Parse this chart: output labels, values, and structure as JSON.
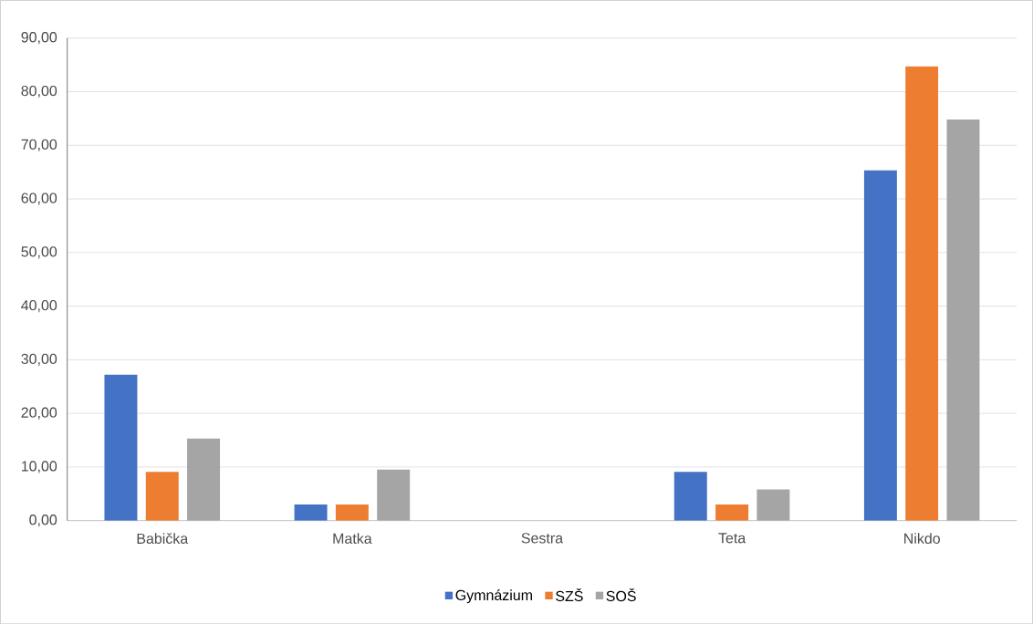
{
  "chart_data": {
    "type": "bar",
    "categories": [
      "Babička",
      "Matka",
      "Sestra",
      "Teta",
      "Nikdo"
    ],
    "series": [
      {
        "name": "Gymnázium",
        "color": "#4472c4",
        "values": [
          27.2,
          3.0,
          0,
          9.1,
          65.3
        ]
      },
      {
        "name": "SZŠ",
        "color": "#ed7d31",
        "values": [
          9.1,
          3.0,
          0,
          3.0,
          84.7
        ]
      },
      {
        "name": "SOŠ",
        "color": "#a5a5a5",
        "values": [
          15.3,
          9.5,
          0,
          5.8,
          74.8
        ]
      }
    ],
    "ylim": [
      0,
      90
    ],
    "yticks": [
      {
        "value": 0,
        "label": "0,00"
      },
      {
        "value": 10,
        "label": "10,00"
      },
      {
        "value": 20,
        "label": "20,00"
      },
      {
        "value": 30,
        "label": "30,00"
      },
      {
        "value": 40,
        "label": "40,00"
      },
      {
        "value": 50,
        "label": "50,00"
      },
      {
        "value": 60,
        "label": "60,00"
      },
      {
        "value": 70,
        "label": "70,00"
      },
      {
        "value": 80,
        "label": "80,00"
      },
      {
        "value": 90,
        "label": "90,00"
      }
    ],
    "grid": "y",
    "legend": "bottom"
  }
}
